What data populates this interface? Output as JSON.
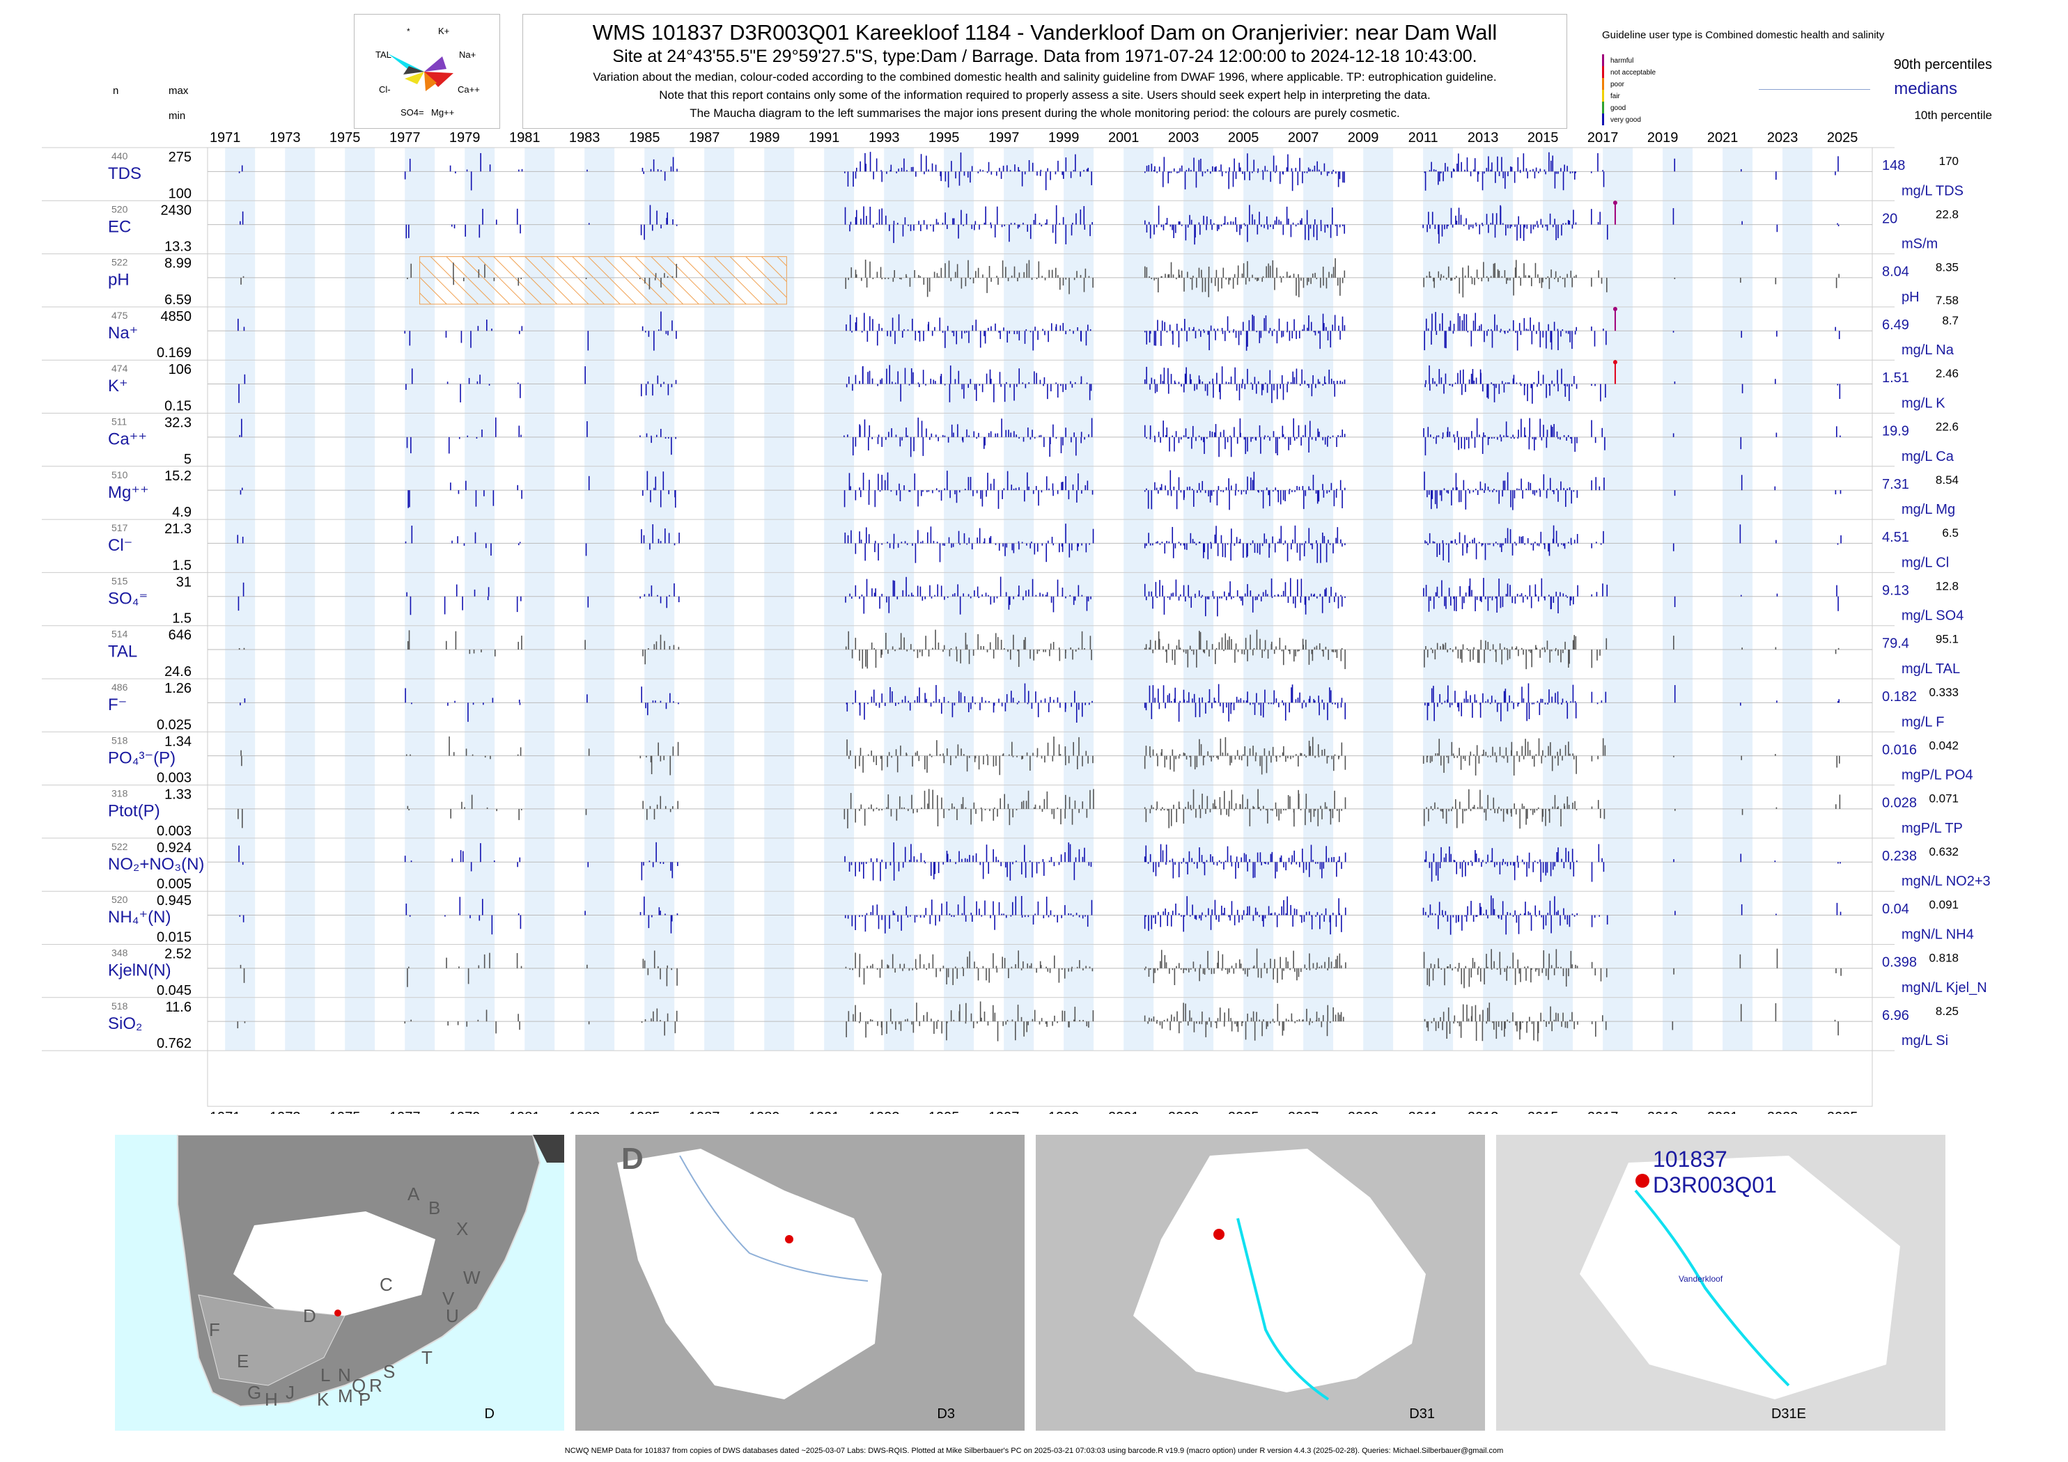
{
  "title": "WMS 101837 D3R003Q01 Kareekloof 1184 - Vanderkloof Dam on Oranjerivier: near Dam Wall",
  "subtitle": "Site at 24°43'55.5\"E 29°59'27.5\"S, type:Dam / Barrage.  Data from 1971-07-24 12:00:00 to 2024-12-18 10:43:00.",
  "notes": [
    "Variation about the median,  colour-coded according to the combined domestic health and salinity guideline from DWAF 1996, where applicable. TP: eutrophication guideline.",
    "Note that this report contains only some of the information required to properly assess a site. Users should seek expert help in interpreting the data.",
    "The Maucha diagram to the left summarises the major ions present during the whole monitoring period: the colours are purely cosmetic."
  ],
  "maucha": {
    "labels": [
      "*",
      "K+",
      "TAL",
      "Na+",
      "Cl-",
      "Ca++",
      "SO4=",
      "Mg++"
    ]
  },
  "legend": {
    "guideline_text": "Guideline user type is Combined domestic health and salinity",
    "classes": [
      {
        "label": "harmful",
        "color": "#a0007a"
      },
      {
        "label": "not acceptable",
        "color": "#e0001a"
      },
      {
        "label": "poor",
        "color": "#f08000"
      },
      {
        "label": "fair",
        "color": "#f0d000"
      },
      {
        "label": "good",
        "color": "#30a030"
      },
      {
        "label": "very good",
        "color": "#1010b0"
      }
    ],
    "p90": "90th percentiles",
    "medians": "medians",
    "p10": "10th percentile"
  },
  "headers": {
    "n": "n",
    "max": "max",
    "min": "min"
  },
  "years": [
    "1971",
    "1973",
    "1975",
    "1977",
    "1979",
    "1981",
    "1983",
    "1985",
    "1987",
    "1989",
    "1991",
    "1993",
    "1995",
    "1997",
    "1999",
    "2001",
    "2003",
    "2005",
    "2007",
    "2009",
    "2011",
    "2013",
    "2015",
    "2017",
    "2019",
    "2021",
    "2023",
    "2025"
  ],
  "chart_data": {
    "type": "bar",
    "x_range": [
      "1970-06-01",
      "2025-12-31"
    ],
    "panels": [
      {
        "n": "440",
        "label": "TDS",
        "max": "275",
        "min": "100",
        "median": "148",
        "p90": "170",
        "p10": "",
        "unit": "mg/L TDS",
        "color": "#1010b0"
      },
      {
        "n": "520",
        "label": "EC",
        "max": "2430",
        "min": "13.3",
        "median": "20",
        "p90": "22.8",
        "p10": "",
        "unit": "mS/m",
        "color": "#1010b0"
      },
      {
        "n": "522",
        "label": "pH",
        "max": "8.99",
        "min": "6.59",
        "median": "8.04",
        "p90": "8.35",
        "p10": "7.58",
        "unit": "pH",
        "color": "#555555"
      },
      {
        "n": "475",
        "label": "Na⁺",
        "max": "4850",
        "min": "0.169",
        "median": "6.49",
        "p90": "8.7",
        "p10": "",
        "unit": "mg/L Na",
        "color": "#1010b0"
      },
      {
        "n": "474",
        "label": "K⁺",
        "max": "106",
        "min": "0.15",
        "median": "1.51",
        "p90": "2.46",
        "p10": "",
        "unit": "mg/L K",
        "color": "#1010b0"
      },
      {
        "n": "511",
        "label": "Ca⁺⁺",
        "max": "32.3",
        "min": "5",
        "median": "19.9",
        "p90": "22.6",
        "p10": "",
        "unit": "mg/L Ca",
        "color": "#1010b0"
      },
      {
        "n": "510",
        "label": "Mg⁺⁺",
        "max": "15.2",
        "min": "4.9",
        "median": "7.31",
        "p90": "8.54",
        "p10": "",
        "unit": "mg/L Mg",
        "color": "#1010b0"
      },
      {
        "n": "517",
        "label": "Cl⁻",
        "max": "21.3",
        "min": "1.5",
        "median": "4.51",
        "p90": "6.5",
        "p10": "",
        "unit": "mg/L Cl",
        "color": "#1010b0"
      },
      {
        "n": "515",
        "label": "SO₄⁼",
        "max": "31",
        "min": "1.5",
        "median": "9.13",
        "p90": "12.8",
        "p10": "",
        "unit": "mg/L SO4",
        "color": "#1010b0"
      },
      {
        "n": "514",
        "label": "TAL",
        "max": "646",
        "min": "24.6",
        "median": "79.4",
        "p90": "95.1",
        "p10": "",
        "unit": "mg/L TAL",
        "color": "#555555"
      },
      {
        "n": "486",
        "label": "F⁻",
        "max": "1.26",
        "min": "0.025",
        "median": "0.182",
        "p90": "0.333",
        "p10": "",
        "unit": "mg/L F",
        "color": "#1010b0"
      },
      {
        "n": "518",
        "label": "PO₄³⁻(P)",
        "max": "1.34",
        "min": "0.003",
        "median": "0.016",
        "p90": "0.042",
        "p10": "",
        "unit": "mgP/L PO4",
        "color": "#555555"
      },
      {
        "n": "318",
        "label": "Ptot(P)",
        "max": "1.33",
        "min": "0.003",
        "median": "0.028",
        "p90": "0.071",
        "p10": "",
        "unit": "mgP/L TP",
        "color": "#555555"
      },
      {
        "n": "522",
        "label": "NO₂+NO₃(N)",
        "max": "0.924",
        "min": "0.005",
        "median": "0.238",
        "p90": "0.632",
        "p10": "",
        "unit": "mgN/L NO2+3",
        "color": "#1010b0"
      },
      {
        "n": "520",
        "label": "NH₄⁺(N)",
        "max": "0.945",
        "min": "0.015",
        "median": "0.04",
        "p90": "0.091",
        "p10": "",
        "unit": "mgN/L NH4",
        "color": "#1010b0"
      },
      {
        "n": "348",
        "label": "KjelN(N)",
        "max": "2.52",
        "min": "0.045",
        "median": "0.398",
        "p90": "0.818",
        "p10": "",
        "unit": "mgN/L Kjel_N",
        "color": "#555555"
      },
      {
        "n": "518",
        "label": "SiO₂",
        "max": "11.6",
        "min": "0.762",
        "median": "6.96",
        "p90": "8.25",
        "p10": "",
        "unit": "mg/L Si",
        "color": "#555555"
      }
    ]
  },
  "maps": [
    {
      "caption": "D",
      "regions": [
        "A",
        "B",
        "X",
        "W",
        "C",
        "V",
        "U",
        "D",
        "T",
        "F",
        "E",
        "S",
        "R",
        "Q",
        "N",
        "L",
        "M",
        "K",
        "J",
        "H",
        "G",
        "P"
      ]
    },
    {
      "caption": "D3",
      "corner": "D"
    },
    {
      "caption": "D31"
    },
    {
      "caption": "D31E",
      "site_id": "101837",
      "site_code": "D3R003Q01",
      "place": "Vanderkloof"
    }
  ],
  "footer": "NCWQ NEMP Data for 101837 from copies of DWS databases dated ~2025-03-07 Labs: DWS-RQIS. Plotted at Mike Silberbauer's PC on 2025-03-21 07:03:03 using barcode.R v19.9 (macro option) under R version 4.4.3 (2025-02-28). Queries: Michael.Silberbauer@gmail.com"
}
